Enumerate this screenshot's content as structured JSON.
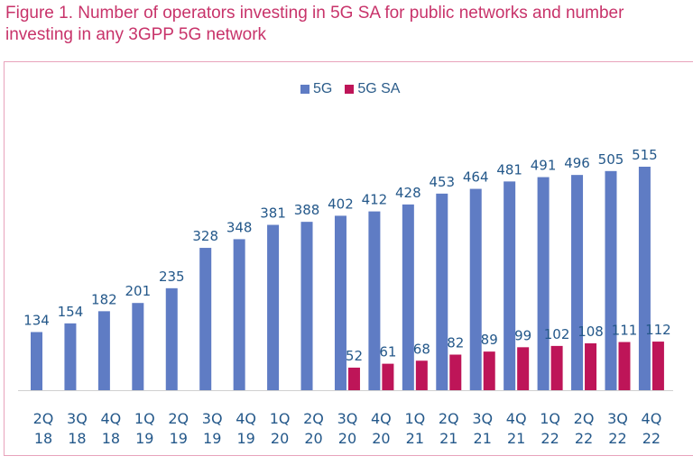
{
  "title": "Figure 1. Number of operators investing in 5G SA for public networks and number investing in any 3GPP 5G network",
  "chart_data": {
    "type": "bar",
    "title": "Figure 1. Number of operators investing in 5G SA for public networks and number investing in any 3GPP 5G network",
    "categories": [
      [
        "2Q",
        "18"
      ],
      [
        "3Q",
        "18"
      ],
      [
        "4Q",
        "18"
      ],
      [
        "1Q",
        "19"
      ],
      [
        "2Q",
        "19"
      ],
      [
        "3Q",
        "19"
      ],
      [
        "4Q",
        "19"
      ],
      [
        "1Q",
        "20"
      ],
      [
        "2Q",
        "20"
      ],
      [
        "3Q",
        "20"
      ],
      [
        "4Q",
        "20"
      ],
      [
        "1Q",
        "21"
      ],
      [
        "2Q",
        "21"
      ],
      [
        "3Q",
        "21"
      ],
      [
        "4Q",
        "21"
      ],
      [
        "1Q",
        "22"
      ],
      [
        "2Q",
        "22"
      ],
      [
        "3Q",
        "22"
      ],
      [
        "4Q",
        "22"
      ]
    ],
    "series": [
      {
        "name": "5G",
        "color": "#5f7cc4",
        "values": [
          134,
          154,
          182,
          201,
          235,
          328,
          348,
          381,
          388,
          402,
          412,
          428,
          453,
          464,
          481,
          491,
          496,
          505,
          515
        ]
      },
      {
        "name": "5G SA",
        "color": "#be1558",
        "values": [
          null,
          null,
          null,
          null,
          null,
          null,
          null,
          null,
          null,
          52,
          61,
          68,
          82,
          89,
          99,
          102,
          108,
          111,
          112
        ]
      }
    ],
    "ylim": [
      0,
      515
    ],
    "grid": false,
    "legend_position": "top-center",
    "data_labels": true
  }
}
